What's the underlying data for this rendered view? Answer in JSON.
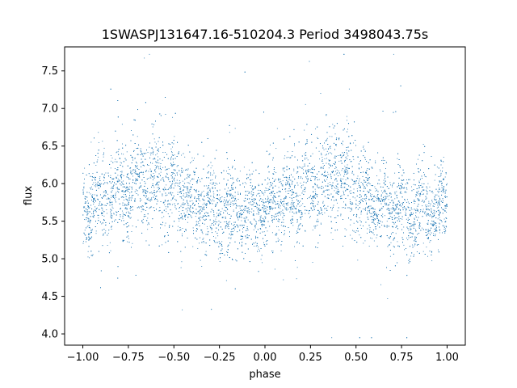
{
  "chart_data": {
    "type": "scatter",
    "title": "1SWASPJ131647.16-510204.3 Period 3498043.75s",
    "xlabel": "phase",
    "ylabel": "flux",
    "xlim": [
      -1.1,
      1.1
    ],
    "ylim": [
      3.85,
      7.82
    ],
    "x_ticks": [
      -1.0,
      -0.75,
      -0.5,
      -0.25,
      0.0,
      0.25,
      0.5,
      0.75,
      1.0
    ],
    "x_tick_labels": [
      "−1.00",
      "−0.75",
      "−0.50",
      "−0.25",
      "0.00",
      "0.25",
      "0.50",
      "0.75",
      "1.00"
    ],
    "y_ticks": [
      4.0,
      4.5,
      5.0,
      5.5,
      6.0,
      6.5,
      7.0,
      7.5
    ],
    "y_tick_labels": [
      "4.0",
      "4.5",
      "5.0",
      "5.5",
      "6.0",
      "6.5",
      "7.0",
      "7.5"
    ],
    "grid": false,
    "marker_color": "#1f77b4",
    "series": [
      {
        "description": "phase-folded light curve; phase range -1 to 1 (one cycle repeated twice)",
        "envelope": [
          {
            "x": -1.0,
            "center": 5.7,
            "spread": 0.35
          },
          {
            "x": -0.9,
            "center": 5.75,
            "spread": 0.4
          },
          {
            "x": -0.75,
            "center": 5.95,
            "spread": 0.4
          },
          {
            "x": -0.6,
            "center": 6.1,
            "spread": 0.45
          },
          {
            "x": -0.5,
            "center": 5.95,
            "spread": 0.4
          },
          {
            "x": -0.4,
            "center": 5.75,
            "spread": 0.35
          },
          {
            "x": -0.25,
            "center": 5.65,
            "spread": 0.4
          },
          {
            "x": -0.1,
            "center": 5.6,
            "spread": 0.35
          },
          {
            "x": 0.0,
            "center": 5.7,
            "spread": 0.35
          },
          {
            "x": 0.1,
            "center": 5.75,
            "spread": 0.4
          },
          {
            "x": 0.25,
            "center": 5.95,
            "spread": 0.4
          },
          {
            "x": 0.4,
            "center": 6.1,
            "spread": 0.45
          },
          {
            "x": 0.5,
            "center": 5.95,
            "spread": 0.4
          },
          {
            "x": 0.6,
            "center": 5.75,
            "spread": 0.35
          },
          {
            "x": 0.75,
            "center": 5.65,
            "spread": 0.4
          },
          {
            "x": 0.9,
            "center": 5.6,
            "spread": 0.35
          },
          {
            "x": 1.0,
            "center": 5.7,
            "spread": 0.35
          }
        ]
      }
    ]
  }
}
